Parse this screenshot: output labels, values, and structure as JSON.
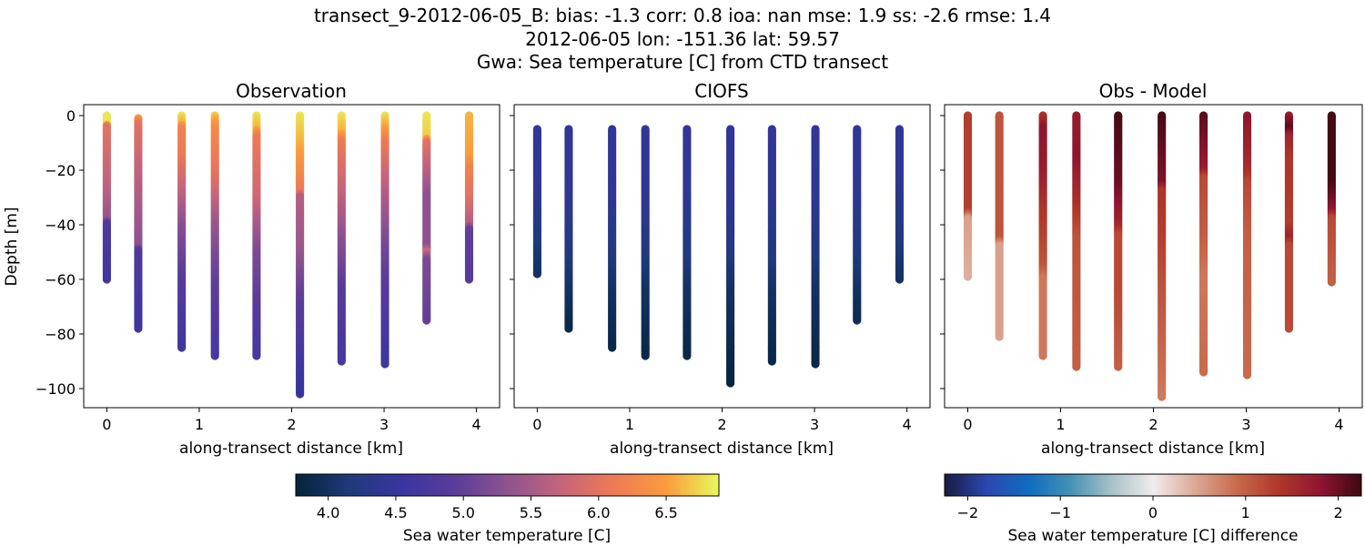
{
  "figure": {
    "title_lines": [
      "transect_9-2012-06-05_B: bias: -1.3  corr: 0.8  ioa: nan  mse: 1.9  ss: -2.6  rmse: 1.4",
      "2012-06-05 lon: -151.36 lat: 59.57",
      "Gwa: Sea temperature [C] from CTD transect"
    ]
  },
  "chart_data": [
    {
      "type": "scatter",
      "title": "Observation",
      "xlabel": "along-transect distance [km]",
      "ylabel": "Depth [m]",
      "xlim": [
        -0.25,
        4.25
      ],
      "ylim": [
        -107,
        4
      ],
      "xticks": [
        "0",
        "1",
        "2",
        "3",
        "4"
      ],
      "yticks": [
        "0",
        "−20",
        "−40",
        "−60",
        "−80",
        "−100"
      ],
      "colormap": "thermal",
      "color_range": [
        3.76,
        6.89
      ],
      "stations": [
        {
          "x": 0.0,
          "top": 0,
          "bottom": 60,
          "profile": [
            [
              0,
              6.8
            ],
            [
              3,
              6.8
            ],
            [
              4,
              6.0
            ],
            [
              25,
              5.7
            ],
            [
              38,
              5.4
            ],
            [
              40,
              4.8
            ],
            [
              60,
              4.6
            ]
          ]
        },
        {
          "x": 0.34,
          "top": 1,
          "bottom": 78,
          "profile": [
            [
              1,
              6.5
            ],
            [
              3,
              6.0
            ],
            [
              20,
              5.7
            ],
            [
              48,
              5.3
            ],
            [
              50,
              4.8
            ],
            [
              78,
              4.6
            ]
          ]
        },
        {
          "x": 0.81,
          "top": 0,
          "bottom": 85,
          "profile": [
            [
              0,
              6.8
            ],
            [
              3,
              6.6
            ],
            [
              5,
              6.2
            ],
            [
              15,
              6.1
            ],
            [
              28,
              5.7
            ],
            [
              40,
              5.3
            ],
            [
              60,
              4.9
            ],
            [
              85,
              4.6
            ]
          ]
        },
        {
          "x": 1.17,
          "top": 0,
          "bottom": 88,
          "profile": [
            [
              0,
              6.7
            ],
            [
              5,
              6.3
            ],
            [
              22,
              6.0
            ],
            [
              40,
              5.4
            ],
            [
              60,
              5.0
            ],
            [
              88,
              4.7
            ]
          ]
        },
        {
          "x": 1.62,
          "top": 0,
          "bottom": 88,
          "profile": [
            [
              0,
              6.8
            ],
            [
              5,
              6.6
            ],
            [
              8,
              6.1
            ],
            [
              30,
              5.8
            ],
            [
              50,
              5.2
            ],
            [
              70,
              4.9
            ],
            [
              88,
              4.7
            ]
          ]
        },
        {
          "x": 2.09,
          "top": 0,
          "bottom": 102,
          "profile": [
            [
              0,
              6.8
            ],
            [
              10,
              6.6
            ],
            [
              28,
              6.1
            ],
            [
              30,
              5.6
            ],
            [
              50,
              5.4
            ],
            [
              66,
              5.0
            ],
            [
              80,
              4.8
            ],
            [
              102,
              4.5
            ]
          ]
        },
        {
          "x": 2.54,
          "top": 0,
          "bottom": 90,
          "profile": [
            [
              0,
              6.8
            ],
            [
              6,
              6.6
            ],
            [
              10,
              6.1
            ],
            [
              25,
              5.8
            ],
            [
              45,
              5.3
            ],
            [
              65,
              4.9
            ],
            [
              90,
              4.7
            ]
          ]
        },
        {
          "x": 3.01,
          "top": 0,
          "bottom": 91,
          "profile": [
            [
              0,
              6.8
            ],
            [
              5,
              6.5
            ],
            [
              10,
              6.1
            ],
            [
              28,
              5.6
            ],
            [
              50,
              5.1
            ],
            [
              70,
              4.8
            ],
            [
              91,
              4.6
            ]
          ]
        },
        {
          "x": 3.46,
          "top": 0,
          "bottom": 75,
          "profile": [
            [
              0,
              6.8
            ],
            [
              8,
              6.7
            ],
            [
              10,
              6.0
            ],
            [
              30,
              5.3
            ],
            [
              48,
              5.3
            ],
            [
              50,
              5.8
            ],
            [
              53,
              5.2
            ],
            [
              75,
              5.0
            ]
          ]
        },
        {
          "x": 3.92,
          "top": 0,
          "bottom": 60,
          "profile": [
            [
              0,
              6.6
            ],
            [
              15,
              6.5
            ],
            [
              20,
              6.2
            ],
            [
              30,
              6.0
            ],
            [
              40,
              5.6
            ],
            [
              42,
              5.0
            ],
            [
              60,
              4.9
            ]
          ]
        }
      ]
    },
    {
      "type": "scatter",
      "title": "CIOFS",
      "xlabel": "along-transect distance [km]",
      "xlim": [
        -0.25,
        4.25
      ],
      "ylim": [
        -107,
        4
      ],
      "xticks": [
        "0",
        "1",
        "2",
        "3",
        "4"
      ],
      "colormap": "thermal",
      "color_range": [
        3.76,
        6.89
      ],
      "stations": [
        {
          "x": 0.0,
          "top": 5,
          "bottom": 58,
          "profile": [
            [
              5,
              4.45
            ],
            [
              25,
              4.4
            ],
            [
              40,
              4.25
            ],
            [
              58,
              4.0
            ]
          ]
        },
        {
          "x": 0.34,
          "top": 5,
          "bottom": 78,
          "profile": [
            [
              5,
              4.45
            ],
            [
              30,
              4.4
            ],
            [
              50,
              4.2
            ],
            [
              65,
              4.0
            ],
            [
              78,
              3.85
            ]
          ]
        },
        {
          "x": 0.81,
          "top": 5,
          "bottom": 85,
          "profile": [
            [
              5,
              4.45
            ],
            [
              30,
              4.4
            ],
            [
              50,
              4.2
            ],
            [
              65,
              4.0
            ],
            [
              85,
              3.85
            ]
          ]
        },
        {
          "x": 1.17,
          "top": 5,
          "bottom": 88,
          "profile": [
            [
              5,
              4.45
            ],
            [
              30,
              4.4
            ],
            [
              50,
              4.2
            ],
            [
              65,
              4.0
            ],
            [
              88,
              3.85
            ]
          ]
        },
        {
          "x": 1.62,
          "top": 5,
          "bottom": 88,
          "profile": [
            [
              5,
              4.45
            ],
            [
              30,
              4.4
            ],
            [
              50,
              4.2
            ],
            [
              65,
              4.0
            ],
            [
              88,
              3.85
            ]
          ]
        },
        {
          "x": 2.09,
          "top": 5,
          "bottom": 98,
          "profile": [
            [
              5,
              4.45
            ],
            [
              30,
              4.4
            ],
            [
              50,
              4.2
            ],
            [
              65,
              4.0
            ],
            [
              98,
              3.8
            ]
          ]
        },
        {
          "x": 2.54,
          "top": 5,
          "bottom": 90,
          "profile": [
            [
              5,
              4.45
            ],
            [
              30,
              4.4
            ],
            [
              50,
              4.2
            ],
            [
              65,
              4.0
            ],
            [
              90,
              3.85
            ]
          ]
        },
        {
          "x": 3.01,
          "top": 5,
          "bottom": 91,
          "profile": [
            [
              5,
              4.45
            ],
            [
              30,
              4.4
            ],
            [
              50,
              4.2
            ],
            [
              65,
              4.0
            ],
            [
              91,
              3.85
            ]
          ]
        },
        {
          "x": 3.46,
          "top": 5,
          "bottom": 75,
          "profile": [
            [
              5,
              4.45
            ],
            [
              30,
              4.4
            ],
            [
              50,
              4.2
            ],
            [
              65,
              4.0
            ],
            [
              75,
              3.9
            ]
          ]
        },
        {
          "x": 3.92,
          "top": 5,
          "bottom": 60,
          "profile": [
            [
              5,
              4.45
            ],
            [
              25,
              4.4
            ],
            [
              45,
              4.2
            ],
            [
              60,
              4.0
            ]
          ]
        }
      ]
    },
    {
      "type": "scatter",
      "title": "Obs - Model",
      "xlabel": "along-transect distance [km]",
      "xlim": [
        -0.25,
        4.25
      ],
      "ylim": [
        -107,
        4
      ],
      "xticks": [
        "0",
        "1",
        "2",
        "3",
        "4"
      ],
      "colormap": "balance",
      "color_range": [
        -2.25,
        2.25
      ],
      "stations": [
        {
          "x": 0.0,
          "top": 0,
          "bottom": 59,
          "profile": [
            [
              0,
              1.3
            ],
            [
              35,
              1.3
            ],
            [
              38,
              0.5
            ],
            [
              59,
              0.4
            ]
          ]
        },
        {
          "x": 0.34,
          "top": 0,
          "bottom": 81,
          "profile": [
            [
              0,
              1.1
            ],
            [
              45,
              1.1
            ],
            [
              48,
              0.5
            ],
            [
              81,
              0.5
            ]
          ]
        },
        {
          "x": 0.81,
          "top": 0,
          "bottom": 88,
          "profile": [
            [
              0,
              1.4
            ],
            [
              5,
              1.8
            ],
            [
              20,
              1.7
            ],
            [
              35,
              1.4
            ],
            [
              55,
              1.1
            ],
            [
              60,
              0.8
            ],
            [
              88,
              0.8
            ]
          ]
        },
        {
          "x": 1.17,
          "top": 0,
          "bottom": 92,
          "profile": [
            [
              0,
              1.7
            ],
            [
              15,
              1.8
            ],
            [
              30,
              1.5
            ],
            [
              45,
              1.1
            ],
            [
              92,
              1.0
            ]
          ]
        },
        {
          "x": 1.62,
          "top": 0,
          "bottom": 92,
          "profile": [
            [
              0,
              2.2
            ],
            [
              25,
              2.0
            ],
            [
              40,
              1.6
            ],
            [
              44,
              1.2
            ],
            [
              65,
              1.2
            ],
            [
              92,
              1.0
            ]
          ]
        },
        {
          "x": 2.09,
          "top": 0,
          "bottom": 103,
          "profile": [
            [
              0,
              2.2
            ],
            [
              25,
              1.9
            ],
            [
              28,
              1.4
            ],
            [
              45,
              1.3
            ],
            [
              65,
              1.1
            ],
            [
              103,
              0.8
            ]
          ]
        },
        {
          "x": 2.54,
          "top": 0,
          "bottom": 94,
          "profile": [
            [
              0,
              2.1
            ],
            [
              20,
              1.7
            ],
            [
              23,
              1.2
            ],
            [
              45,
              1.0
            ],
            [
              60,
              0.8
            ],
            [
              94,
              0.9
            ]
          ]
        },
        {
          "x": 3.01,
          "top": 0,
          "bottom": 95,
          "profile": [
            [
              0,
              1.8
            ],
            [
              20,
              1.5
            ],
            [
              25,
              1.2
            ],
            [
              45,
              1.0
            ],
            [
              95,
              0.9
            ]
          ]
        },
        {
          "x": 3.46,
          "top": 0,
          "bottom": 78,
          "profile": [
            [
              0,
              1.7
            ],
            [
              5,
              2.1
            ],
            [
              8,
              1.6
            ],
            [
              15,
              1.4
            ],
            [
              40,
              1.3
            ],
            [
              45,
              1.6
            ],
            [
              48,
              1.2
            ],
            [
              78,
              1.2
            ]
          ]
        },
        {
          "x": 3.92,
          "top": 0,
          "bottom": 61,
          "profile": [
            [
              0,
              2.2
            ],
            [
              25,
              2.2
            ],
            [
              35,
              1.8
            ],
            [
              38,
              1.2
            ],
            [
              61,
              1.0
            ]
          ]
        }
      ]
    }
  ],
  "colorbars": [
    {
      "label": "Sea water temperature [C]",
      "range": [
        3.76,
        6.89
      ],
      "ticks": [
        4.0,
        4.5,
        5.0,
        5.5,
        6.0,
        6.5
      ],
      "tick_labels": [
        "4.0",
        "4.5",
        "5.0",
        "5.5",
        "6.0",
        "6.5"
      ],
      "colormap": "thermal"
    },
    {
      "label": "Sea water temperature [C] difference",
      "range": [
        -2.25,
        2.25
      ],
      "ticks": [
        -2,
        -1,
        0,
        1,
        2
      ],
      "tick_labels": [
        "−2",
        "−1",
        "0",
        "1",
        "2"
      ],
      "colormap": "balance"
    }
  ],
  "colormaps": {
    "thermal": [
      "#04233a",
      "#1f3a7a",
      "#3a35a0",
      "#5a3c9a",
      "#8f5390",
      "#c5647c",
      "#ee7a55",
      "#fa9c3c",
      "#e8fa5b"
    ],
    "balance": [
      "#181c43",
      "#2c48b0",
      "#0f6cbf",
      "#4391b4",
      "#a8c2c8",
      "#f1ecec",
      "#dba894",
      "#c86a4d",
      "#b0382a",
      "#8f1530",
      "#3c0912"
    ]
  }
}
